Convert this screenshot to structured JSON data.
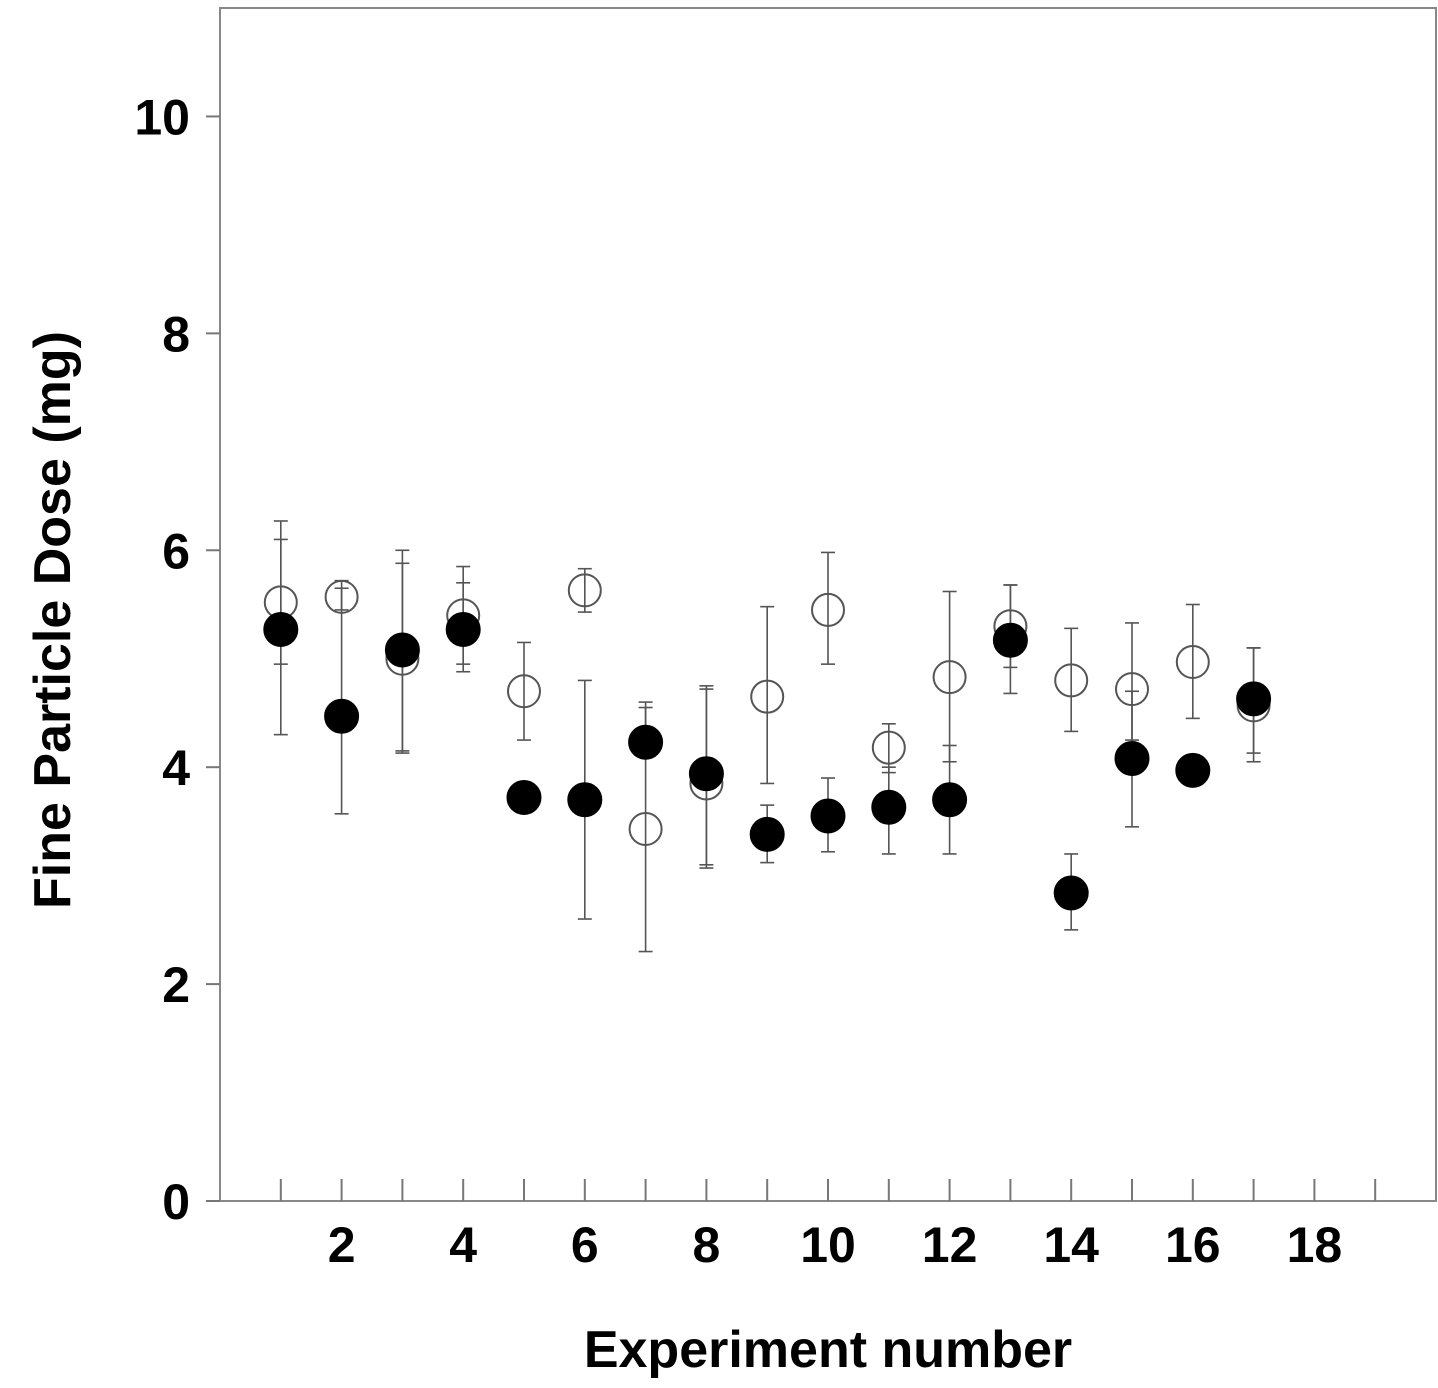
{
  "chart_data": {
    "type": "scatter",
    "title": "",
    "xlabel": "Experiment number",
    "ylabel": "Fine Particle Dose (mg)",
    "xlim": [
      0,
      20
    ],
    "ylim": [
      0,
      11
    ],
    "x_ticks_minor": [
      1,
      2,
      3,
      4,
      5,
      6,
      7,
      8,
      9,
      10,
      11,
      12,
      13,
      14,
      15,
      16,
      17,
      18,
      19
    ],
    "x_tick_labels": [
      "2",
      "4",
      "6",
      "8",
      "10",
      "12",
      "14",
      "16",
      "18"
    ],
    "x_tick_values": [
      2,
      4,
      6,
      8,
      10,
      12,
      14,
      16,
      18
    ],
    "y_tick_labels": [
      "0",
      "2",
      "4",
      "6",
      "8",
      "10"
    ],
    "y_tick_values": [
      0,
      2,
      4,
      6,
      8,
      10
    ],
    "grid": false,
    "legend": "none",
    "series": [
      {
        "marker": "open-circle",
        "color": "#555555",
        "x": [
          1,
          2,
          3,
          4,
          5,
          6,
          7,
          8,
          9,
          10,
          11,
          12,
          13,
          14,
          15,
          16,
          17
        ],
        "y": [
          5.52,
          5.57,
          5.0,
          5.4,
          4.7,
          5.63,
          3.43,
          3.85,
          4.65,
          5.45,
          4.18,
          4.83,
          5.3,
          4.8,
          4.72,
          4.97,
          4.57
        ],
        "err_low": [
          4.95,
          5.45,
          4.15,
          4.95,
          4.25,
          5.43,
          2.3,
          3.1,
          3.85,
          4.95,
          3.95,
          4.05,
          4.92,
          4.33,
          4.25,
          4.45,
          4.05
        ],
        "err_high": [
          6.1,
          5.72,
          5.88,
          5.7,
          5.15,
          5.83,
          4.55,
          4.72,
          5.48,
          5.98,
          4.4,
          5.62,
          5.68,
          5.28,
          5.33,
          5.5,
          5.1
        ]
      },
      {
        "marker": "filled-circle",
        "color": "#000000",
        "x": [
          1,
          2,
          3,
          4,
          5,
          6,
          7,
          8,
          9,
          10,
          11,
          12,
          13,
          14,
          15,
          16,
          17
        ],
        "y": [
          5.27,
          4.47,
          5.08,
          5.27,
          3.72,
          3.7,
          4.23,
          3.94,
          3.38,
          3.55,
          3.63,
          3.7,
          5.17,
          2.84,
          4.08,
          3.97,
          4.63
        ],
        "err_low": [
          4.3,
          3.57,
          4.13,
          4.88,
          3.72,
          2.6,
          4.23,
          3.07,
          3.12,
          3.22,
          3.2,
          3.2,
          4.68,
          2.5,
          3.45,
          3.97,
          4.13
        ],
        "err_high": [
          6.27,
          5.65,
          6.0,
          5.85,
          3.72,
          4.8,
          4.6,
          4.75,
          3.65,
          3.9,
          4.0,
          4.2,
          5.68,
          3.2,
          4.7,
          3.97,
          5.1
        ]
      }
    ]
  }
}
